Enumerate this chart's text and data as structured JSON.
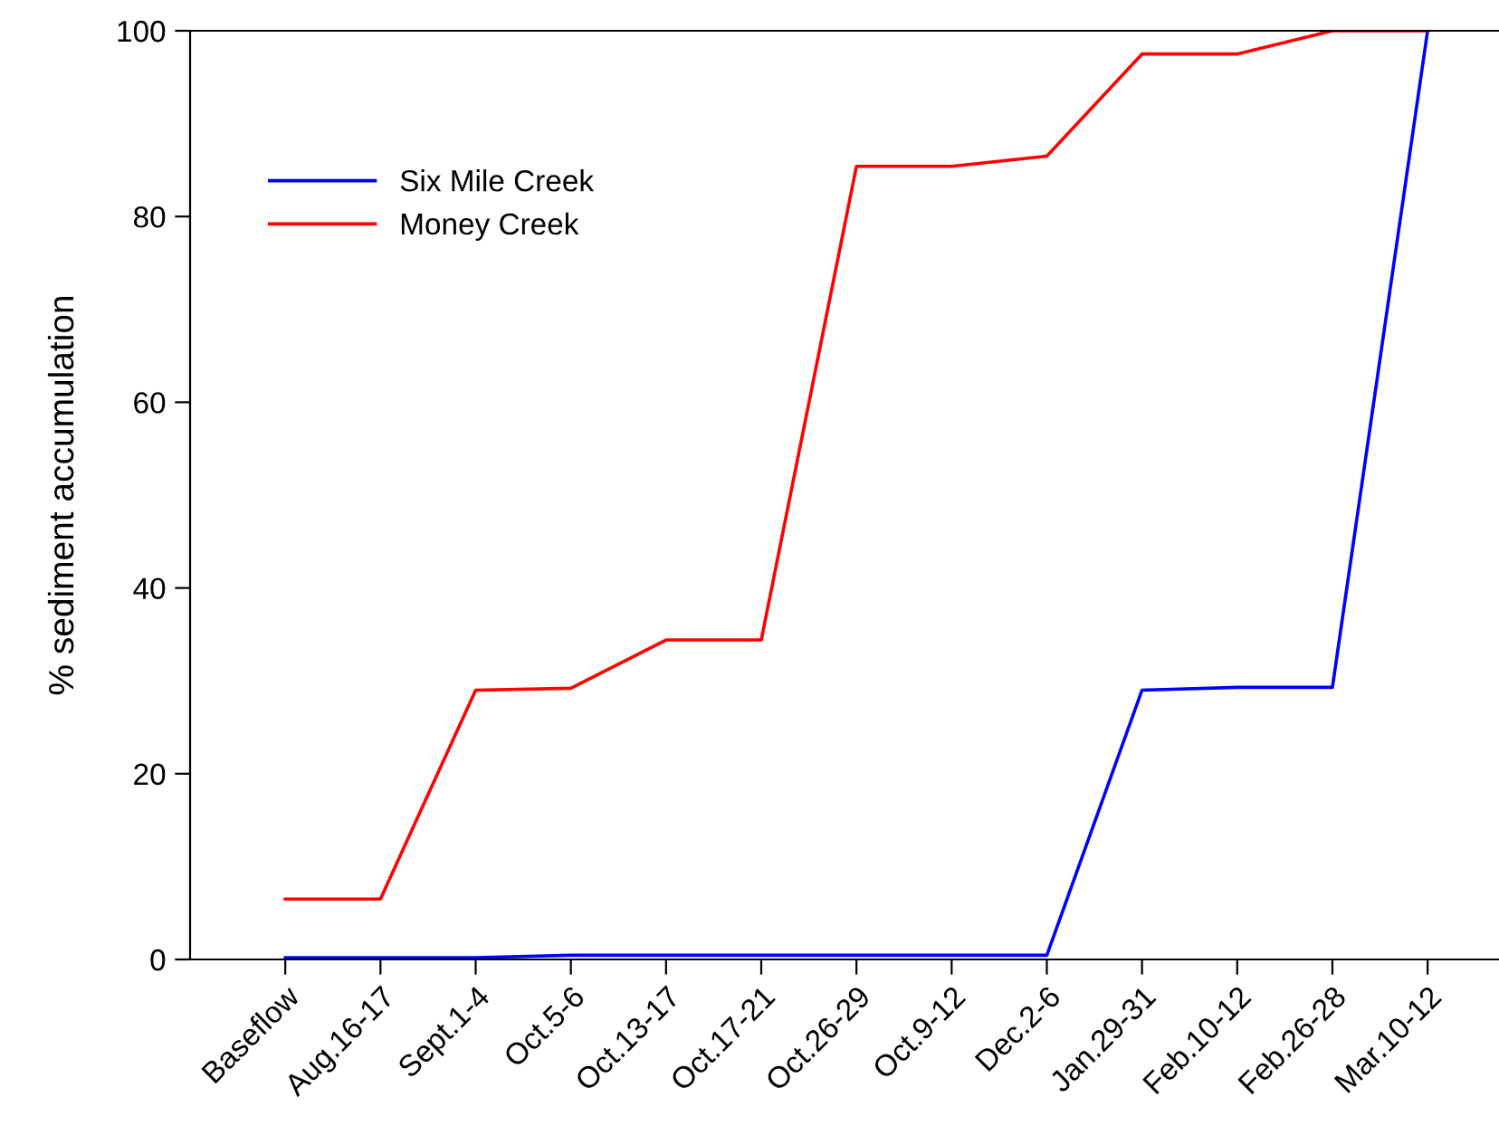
{
  "chart_data": {
    "type": "line",
    "ylabel": "% sediment accumulation",
    "categories": [
      "Baseflow",
      "Aug.16-17",
      "Sept.1-4",
      "Oct.5-6",
      "Oct.13-17",
      "Oct.17-21",
      "Oct.26-29",
      "Oct.9-12",
      "Dec.2-6",
      "Jan.29-31",
      "Feb.10-12",
      "Feb.26-28",
      "Mar.10-12"
    ],
    "series": [
      {
        "name": "Six Mile Creek",
        "color": "#0000ff",
        "values": [
          0.2,
          0.2,
          0.2,
          0.45,
          0.45,
          0.45,
          0.45,
          0.45,
          0.45,
          29.0,
          29.3,
          29.3,
          100
        ]
      },
      {
        "name": "Money Creek",
        "color": "#ff0000",
        "values": [
          6.5,
          6.5,
          29.0,
          29.2,
          34.4,
          34.4,
          85.4,
          85.4,
          86.5,
          97.5,
          97.5,
          100,
          100
        ]
      }
    ],
    "ylim": [
      0,
      100
    ],
    "yticks": [
      0,
      20,
      40,
      60,
      80,
      100
    ],
    "grid": false,
    "legend": "top left",
    "marker": "none",
    "line_style": "solid"
  }
}
